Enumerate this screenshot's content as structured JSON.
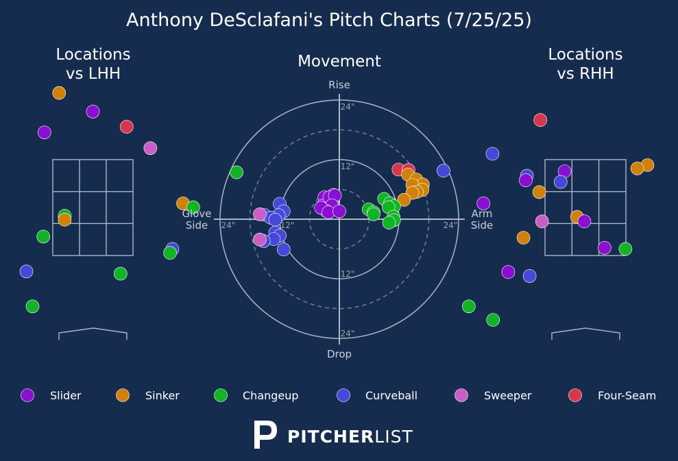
{
  "chart_data": {
    "type": "scatter",
    "title": "Anthony DeSclafani's Pitch Charts (7/25/25)",
    "colors": {
      "Slider": "#8a0fd0",
      "Sinker": "#d08208",
      "Changeup": "#12b426",
      "Curveball": "#4548d8",
      "Sweeper": "#c95ec4",
      "Four-Seam": "#d7374d"
    },
    "legend": [
      "Slider",
      "Sinker",
      "Changeup",
      "Curveball",
      "Sweeper",
      "Four-Seam"
    ],
    "panels": [
      {
        "title_lines": [
          "Locations",
          "vs LHH"
        ],
        "side": "left",
        "points": [
          {
            "pitch": "Sinker",
            "x": -0.6,
            "y": 4.48
          },
          {
            "pitch": "Slider",
            "x": 0.0,
            "y": 4.15
          },
          {
            "pitch": "Four-Seam",
            "x": 0.6,
            "y": 3.88
          },
          {
            "pitch": "Slider",
            "x": -0.86,
            "y": 3.78
          },
          {
            "pitch": "Sweeper",
            "x": 1.02,
            "y": 3.5
          },
          {
            "pitch": "Changeup",
            "x": 2.55,
            "y": 3.07
          },
          {
            "pitch": "Slider",
            "x": -1.97,
            "y": 2.53
          },
          {
            "pitch": "Sinker",
            "x": 1.6,
            "y": 2.52
          },
          {
            "pitch": "Changeup",
            "x": 1.78,
            "y": 2.45
          },
          {
            "pitch": "Changeup",
            "x": -0.5,
            "y": 2.3
          },
          {
            "pitch": "Sinker",
            "x": -0.5,
            "y": 2.23
          },
          {
            "pitch": "Changeup",
            "x": -0.88,
            "y": 1.93
          },
          {
            "pitch": "Curveball",
            "x": 1.41,
            "y": 1.71
          },
          {
            "pitch": "Changeup",
            "x": 1.37,
            "y": 1.64
          },
          {
            "pitch": "Curveball",
            "x": -1.18,
            "y": 1.31
          },
          {
            "pitch": "Changeup",
            "x": 0.49,
            "y": 1.27
          },
          {
            "pitch": "Changeup",
            "x": -1.07,
            "y": 0.69
          }
        ]
      },
      {
        "title_lines": [
          "Locations",
          "vs RHH"
        ],
        "side": "right",
        "points": [
          {
            "pitch": "Four-Seam",
            "x": -0.8,
            "y": 4.0
          },
          {
            "pitch": "Sinker",
            "x": 2.41,
            "y": 3.53
          },
          {
            "pitch": "Curveball",
            "x": -1.65,
            "y": 3.4
          },
          {
            "pitch": "Sinker",
            "x": 1.1,
            "y": 3.2
          },
          {
            "pitch": "Sinker",
            "x": 0.92,
            "y": 3.14
          },
          {
            "pitch": "Curveball",
            "x": -2.52,
            "y": 3.1
          },
          {
            "pitch": "Slider",
            "x": -0.37,
            "y": 3.09
          },
          {
            "pitch": "Curveball",
            "x": -1.04,
            "y": 3.01
          },
          {
            "pitch": "Slider",
            "x": -1.06,
            "y": 2.93
          },
          {
            "pitch": "Curveball",
            "x": -0.44,
            "y": 2.9
          },
          {
            "pitch": "Sinker",
            "x": -0.82,
            "y": 2.72
          },
          {
            "pitch": "Sinker",
            "x": 1.4,
            "y": 2.61
          },
          {
            "pitch": "Slider",
            "x": -1.81,
            "y": 2.52
          },
          {
            "pitch": "Sinker",
            "x": -0.15,
            "y": 2.28
          },
          {
            "pitch": "Slider",
            "x": -0.02,
            "y": 2.2
          },
          {
            "pitch": "Sweeper",
            "x": -0.77,
            "y": 2.2
          },
          {
            "pitch": "Sinker",
            "x": 1.57,
            "y": 1.91
          },
          {
            "pitch": "Sinker",
            "x": -1.1,
            "y": 1.91
          },
          {
            "pitch": "Slider",
            "x": 0.34,
            "y": 1.73
          },
          {
            "pitch": "Changeup",
            "x": 0.71,
            "y": 1.71
          },
          {
            "pitch": "Slider",
            "x": -1.37,
            "y": 1.3
          },
          {
            "pitch": "Curveball",
            "x": -0.99,
            "y": 1.23
          },
          {
            "pitch": "Changeup",
            "x": -2.07,
            "y": 0.69
          },
          {
            "pitch": "Changeup",
            "x": -1.64,
            "y": 0.45
          }
        ]
      }
    ],
    "movement": {
      "title": "Movement",
      "labels": {
        "top": "Rise",
        "bottom": "Drop",
        "left_1": "Glove",
        "left_2": "Side",
        "right_1": "Arm",
        "right_2": "Side"
      },
      "ring_labels": [
        "24\"",
        "12\"",
        "12\"",
        "24\"",
        "24\"",
        "12\"",
        "24\""
      ],
      "units": "inches",
      "points": [
        {
          "pitch": "Slider",
          "x": -1.2,
          "y": 4.9
        },
        {
          "pitch": "Slider",
          "x": -3.0,
          "y": 4.4
        },
        {
          "pitch": "Slider",
          "x": -1.5,
          "y": 4.0
        },
        {
          "pitch": "Slider",
          "x": -3.4,
          "y": 2.7
        },
        {
          "pitch": "Slider",
          "x": -1.5,
          "y": 3.4
        },
        {
          "pitch": "Slider",
          "x": -2.0,
          "y": 4.4
        },
        {
          "pitch": "Slider",
          "x": -0.9,
          "y": 4.8
        },
        {
          "pitch": "Slider",
          "x": -1.5,
          "y": 2.8
        },
        {
          "pitch": "Slider",
          "x": -2.7,
          "y": 1.7
        },
        {
          "pitch": "Slider",
          "x": -3.7,
          "y": 2.3
        },
        {
          "pitch": "Slider",
          "x": -2.2,
          "y": 1.4
        },
        {
          "pitch": "Slider",
          "x": 0.0,
          "y": 1.6
        },
        {
          "pitch": "Four-Seam",
          "x": 11.9,
          "y": 10.0
        },
        {
          "pitch": "Four-Seam",
          "x": 13.9,
          "y": 9.9
        },
        {
          "pitch": "Sinker",
          "x": 13.8,
          "y": 9.0
        },
        {
          "pitch": "Sinker",
          "x": 15.5,
          "y": 8.0
        },
        {
          "pitch": "Sinker",
          "x": 16.8,
          "y": 7.0
        },
        {
          "pitch": "Sinker",
          "x": 14.7,
          "y": 6.9
        },
        {
          "pitch": "Sinker",
          "x": 16.7,
          "y": 5.9
        },
        {
          "pitch": "Sinker",
          "x": 15.6,
          "y": 5.5
        },
        {
          "pitch": "Sinker",
          "x": 14.7,
          "y": 5.3
        },
        {
          "pitch": "Sinker",
          "x": 13.0,
          "y": 3.9
        },
        {
          "pitch": "Changeup",
          "x": 9.0,
          "y": 4.1
        },
        {
          "pitch": "Changeup",
          "x": 10.2,
          "y": 3.2
        },
        {
          "pitch": "Changeup",
          "x": 11.0,
          "y": 2.6
        },
        {
          "pitch": "Changeup",
          "x": 9.9,
          "y": 2.4
        },
        {
          "pitch": "Changeup",
          "x": 5.9,
          "y": 2.0
        },
        {
          "pitch": "Changeup",
          "x": 6.9,
          "y": 1.4
        },
        {
          "pitch": "Changeup",
          "x": 6.9,
          "y": 1.0
        },
        {
          "pitch": "Changeup",
          "x": 10.9,
          "y": 0.5
        },
        {
          "pitch": "Changeup",
          "x": 11.0,
          "y": -0.2
        },
        {
          "pitch": "Changeup",
          "x": 10.0,
          "y": -0.7
        },
        {
          "pitch": "Curveball",
          "x": -12.0,
          "y": 3.1
        },
        {
          "pitch": "Curveball",
          "x": -11.2,
          "y": 1.6
        },
        {
          "pitch": "Curveball",
          "x": -15.1,
          "y": 0.9
        },
        {
          "pitch": "Curveball",
          "x": -12.2,
          "y": 0.8
        },
        {
          "pitch": "Curveball",
          "x": -13.8,
          "y": 0.3
        },
        {
          "pitch": "Curveball",
          "x": -12.9,
          "y": -0.1
        },
        {
          "pitch": "Curveball",
          "x": -12.9,
          "y": -2.7
        },
        {
          "pitch": "Curveball",
          "x": -12.0,
          "y": -3.3
        },
        {
          "pitch": "Curveball",
          "x": -13.2,
          "y": -4.0
        },
        {
          "pitch": "Curveball",
          "x": -15.2,
          "y": -4.4
        },
        {
          "pitch": "Curveball",
          "x": -11.2,
          "y": -6.1
        },
        {
          "pitch": "Sweeper",
          "x": -16.0,
          "y": 1.0
        },
        {
          "pitch": "Sweeper",
          "x": -16.0,
          "y": -4.1
        }
      ]
    }
  },
  "legend_labels": [
    "Slider",
    "Sinker",
    "Changeup",
    "Curveball",
    "Sweeper",
    "Four-Seam"
  ],
  "brand": {
    "bold": "PITCHER",
    "light": "LIST"
  }
}
